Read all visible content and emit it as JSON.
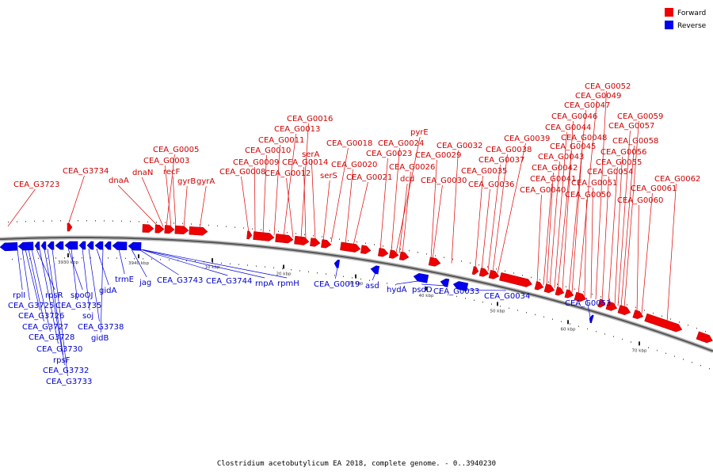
{
  "caption": "Clostridium acetobutylicum EA 2018, complete genome. - 0..3940230",
  "legend": [
    {
      "label": "Forward",
      "color": "#ee0000"
    },
    {
      "label": "Reverse",
      "color": "#0000ee"
    }
  ],
  "colors": {
    "forward": "#ee0000",
    "reverse": "#0000ee",
    "backbone": "#555555"
  },
  "ticks": [
    "3930 kbp",
    "3940 kbp",
    "10 kbp",
    "20 kbp",
    "30 kbp",
    "40 kbp",
    "50 kbp",
    "60 kbp",
    "70 kbp"
  ],
  "forward_labels": [
    "CEA_G3723",
    "CEA_G3734",
    "dnaA",
    "dnaN",
    "CEA_G0005",
    "CEA_G0003",
    "recF",
    "gyrB",
    "gyrA",
    "CEA_G0008",
    "CEA_G0009",
    "CEA_G0010",
    "CEA_G0011",
    "CEA_G0013",
    "CEA_G0016",
    "CEA_G0012",
    "CEA_G0014",
    "serA",
    "serS",
    "CEA_G0018",
    "CEA_G0020",
    "CEA_G0021",
    "CEA_G0023",
    "CEA_G0024",
    "pyrE",
    "dcd",
    "CEA_G0026",
    "CEA_G0029",
    "CEA_G0030",
    "CEA_G0032",
    "CEA_G0035",
    "CEA_G0036",
    "CEA_G0037",
    "CEA_G0038",
    "CEA_G0039",
    "CEA_G0040",
    "CEA_G0041",
    "CEA_G0042",
    "CEA_G0043",
    "CEA_G0044",
    "CEA_G0045",
    "CEA_G0046",
    "CEA_G0047",
    "CEA_G0048",
    "CEA_G0049",
    "CEA_G0050",
    "CEA_G0051",
    "CEA_G0052",
    "CEA_G0054",
    "CEA_G0055",
    "CEA_G0056",
    "CEA_G0057",
    "CEA_G0058",
    "CEA_G0059",
    "CEA_G0060",
    "CEA_G0061",
    "CEA_G0062"
  ],
  "reverse_labels": [
    "rplI",
    "CEA_G3725",
    "CEA_G3726",
    "CEA_G3727",
    "CEA_G3728",
    "rpsR",
    "CEA_G3730",
    "rpsF",
    "CEA_G3732",
    "CEA_G3733",
    "spoOJ",
    "CEA_G3735",
    "soj",
    "CEA_G3738",
    "gidA",
    "gidB",
    "trmE",
    "jag",
    "CEA_G3743",
    "CEA_G3744",
    "rnpA",
    "rpmH",
    "CEA_G0019",
    "asd",
    "hydA",
    "psdD",
    "CEA_G0033",
    "CEA_G0034",
    "CEA_G0053"
  ]
}
